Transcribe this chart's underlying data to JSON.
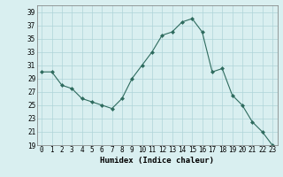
{
  "x": [
    0,
    1,
    2,
    3,
    4,
    5,
    6,
    7,
    8,
    9,
    10,
    11,
    12,
    13,
    14,
    15,
    16,
    17,
    18,
    19,
    20,
    21,
    22,
    23
  ],
  "y": [
    30,
    30,
    28,
    27.5,
    26,
    25.5,
    25,
    24.5,
    26,
    29,
    31,
    33,
    35.5,
    36,
    37.5,
    38,
    36,
    30,
    30.5,
    26.5,
    25,
    22.5,
    21,
    19
  ],
  "line_color": "#2e6b5e",
  "marker": "D",
  "marker_size": 2,
  "bg_color": "#d9eff0",
  "grid_color": "#afd4d8",
  "xlabel": "Humidex (Indice chaleur)",
  "ylim": [
    19,
    40
  ],
  "yticks": [
    19,
    21,
    23,
    25,
    27,
    29,
    31,
    33,
    35,
    37,
    39
  ],
  "xlim": [
    -0.5,
    23.5
  ],
  "xticks": [
    0,
    1,
    2,
    3,
    4,
    5,
    6,
    7,
    8,
    9,
    10,
    11,
    12,
    13,
    14,
    15,
    16,
    17,
    18,
    19,
    20,
    21,
    22,
    23
  ],
  "xlabel_fontsize": 6.5,
  "tick_fontsize": 5.5,
  "linewidth": 0.8
}
